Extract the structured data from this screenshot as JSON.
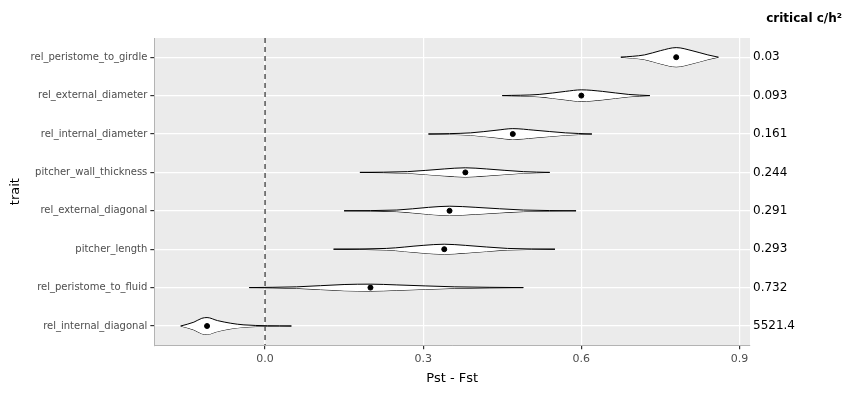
{
  "chart_data": {
    "type": "violin",
    "orientation": "horizontal",
    "x_label": "Pst - Fst",
    "y_label": "trait",
    "right_label_title": "critical c/h²",
    "categories": [
      "rel_peristome_to_girdle",
      "rel_external_diameter",
      "rel_internal_diameter",
      "pitcher_wall_thickness",
      "rel_external_diagonal",
      "pitcher_length",
      "rel_peristome_to_fluid",
      "rel_internal_diagonal"
    ],
    "critical_c_h2": [
      0.03,
      0.093,
      0.161,
      0.244,
      0.291,
      0.293,
      0.732,
      5521.4
    ],
    "medians": [
      0.78,
      0.6,
      0.47,
      0.38,
      0.35,
      0.34,
      0.2,
      -0.11
    ],
    "density": [
      {
        "x": [
          0.675,
          0.72,
          0.75,
          0.78,
          0.81,
          0.84,
          0.86
        ],
        "half_width": [
          0,
          0.06,
          0.17,
          0.25,
          0.17,
          0.06,
          0
        ]
      },
      {
        "x": [
          0.45,
          0.52,
          0.57,
          0.6,
          0.64,
          0.69,
          0.73
        ],
        "half_width": [
          0,
          0.03,
          0.11,
          0.15,
          0.11,
          0.03,
          0
        ]
      },
      {
        "x": [
          0.31,
          0.39,
          0.44,
          0.47,
          0.51,
          0.57,
          0.62
        ],
        "half_width": [
          0,
          0.03,
          0.1,
          0.14,
          0.1,
          0.03,
          0
        ]
      },
      {
        "x": [
          0.18,
          0.27,
          0.34,
          0.38,
          0.42,
          0.49,
          0.54
        ],
        "half_width": [
          0,
          0.02,
          0.09,
          0.12,
          0.09,
          0.02,
          0
        ]
      },
      {
        "x": [
          0.15,
          0.25,
          0.31,
          0.35,
          0.4,
          0.49,
          0.59
        ],
        "half_width": [
          0,
          0.02,
          0.09,
          0.12,
          0.09,
          0.02,
          0
        ]
      },
      {
        "x": [
          0.13,
          0.23,
          0.3,
          0.34,
          0.38,
          0.46,
          0.55
        ],
        "half_width": [
          0,
          0.02,
          0.1,
          0.13,
          0.1,
          0.02,
          0
        ]
      },
      {
        "x": [
          -0.03,
          0.06,
          0.15,
          0.2,
          0.25,
          0.36,
          0.49
        ],
        "half_width": [
          0,
          0.02,
          0.08,
          0.09,
          0.07,
          0.02,
          0
        ]
      },
      {
        "x": [
          -0.16,
          -0.135,
          -0.12,
          -0.11,
          -0.09,
          -0.04,
          0.05
        ],
        "half_width": [
          0,
          0.1,
          0.2,
          0.22,
          0.14,
          0.03,
          0
        ]
      }
    ],
    "color": "#000000",
    "reference_line": {
      "x": 0,
      "line_style": "dashed"
    },
    "xlim": [
      -0.21,
      0.92
    ],
    "xticks": [
      {
        "value": 0,
        "label": "0.0"
      },
      {
        "value": 0.3,
        "label": "0.3"
      },
      {
        "value": 0.6,
        "label": "0.6"
      },
      {
        "value": 0.9,
        "label": "0.9"
      }
    ],
    "grid": true
  }
}
